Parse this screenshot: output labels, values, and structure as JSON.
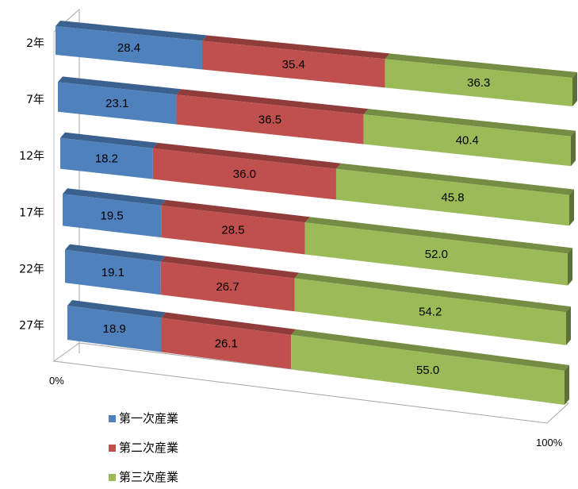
{
  "chart_data": {
    "type": "bar",
    "orientation": "horizontal",
    "stacked": "percent",
    "three_d": true,
    "categories": [
      "2年",
      "7年",
      "12年",
      "17年",
      "22年",
      "27年"
    ],
    "series": [
      {
        "name": "第一次産業",
        "color": "#4f81bd",
        "values": [
          28.4,
          23.1,
          18.2,
          19.5,
          19.1,
          18.9
        ]
      },
      {
        "name": "第二次産業",
        "color": "#c0504d",
        "values": [
          35.4,
          36.5,
          36.0,
          28.5,
          26.7,
          26.1
        ]
      },
      {
        "name": "第三次産業",
        "color": "#9bbb59",
        "values": [
          36.3,
          40.4,
          45.8,
          52.0,
          54.2,
          55.0
        ]
      }
    ],
    "axis": {
      "min_label": "0%",
      "max_label": "100%"
    },
    "legend_position": "bottom-left",
    "grid": false
  }
}
